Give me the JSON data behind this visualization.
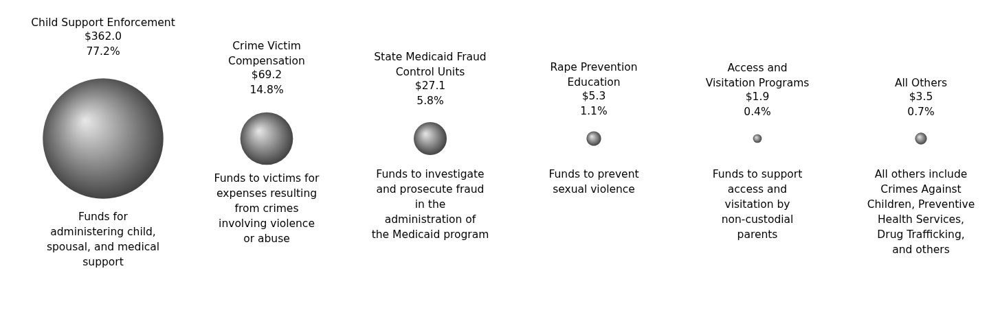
{
  "chart_data": {
    "type": "other",
    "categories": [
      "Child Support Enforcement",
      "Crime Victim Compensation",
      "State Medicaid Fraud Control Units",
      "Rape Prevention Education",
      "Access and Visitation Programs",
      "All Others"
    ],
    "values": [
      362.0,
      69.2,
      27.1,
      5.3,
      1.9,
      3.5
    ],
    "value_labels": [
      "$362.0",
      "$69.2",
      "$27.1",
      "$5.3",
      "$1.9",
      "$3.5"
    ],
    "color": "#7f7f7f",
    "annotations": [
      {
        "text": "77.2%",
        "x": "Child Support Enforcement"
      },
      {
        "text": "14.8%",
        "x": "Crime Victim Compensation"
      },
      {
        "text": "5.8%",
        "x": "State Medicaid Fraud Control Units"
      },
      {
        "text": "1.1%",
        "x": "Rape Prevention Education"
      },
      {
        "text": "0.4%",
        "x": "Access and Visitation Programs"
      },
      {
        "text": "0.7%",
        "x": "All Others"
      },
      {
        "text": "Funds for administering child, spousal, and medical support",
        "x": "Child Support Enforcement"
      },
      {
        "text": "Funds to victims for expenses resulting from crimes involving violence or abuse",
        "x": "Crime Victim Compensation"
      },
      {
        "text": "Funds to investigate and prosecute fraud in the administration of the Medicaid program",
        "x": "State Medicaid Fraud Control Units"
      },
      {
        "text": "Funds to prevent sexual violence",
        "x": "Rape Prevention Education"
      },
      {
        "text": "Funds to support access and visitation by non-custodial parents",
        "x": "Access and Visitation Programs"
      },
      {
        "text": "All others include Crimes Against Children, Preventive Health Services, Drug Trafficking, and others",
        "x": "All Others"
      }
    ]
  }
}
